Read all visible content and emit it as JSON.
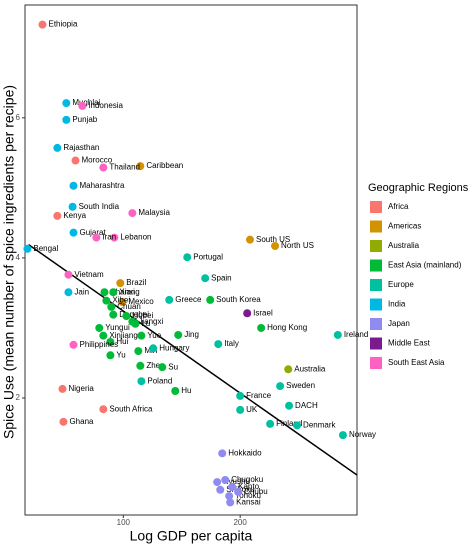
{
  "chart_data": {
    "type": "scatter",
    "x_label": "Log GDP per capita",
    "y_label": "Spice Use (mean number of spice ingredients per recipe)",
    "x_scale": "log",
    "xlim": [
      55.8,
      400
    ],
    "ylim": [
      0.33,
      7.61
    ],
    "xticks": [
      100,
      200
    ],
    "yticks": [
      2,
      4,
      6
    ],
    "legend_title": "Geographic Regions",
    "trend_line": {
      "x": [
        57,
        400
      ],
      "y": [
        4.19,
        0.9
      ],
      "color": "#000000"
    },
    "series": [
      {
        "name": "Africa",
        "color": "#F8766D",
        "labels": [
          "Ethiopia",
          "Kenya",
          "Nigeria",
          "Ghana",
          "Morocco",
          "South Africa"
        ],
        "x": [
          61.9,
          67.6,
          69.7,
          70.1,
          75.3,
          88.8
        ],
        "values": [
          7.33,
          4.6,
          2.13,
          1.66,
          5.39,
          1.84
        ]
      },
      {
        "name": "Americas",
        "color": "#D39200",
        "labels": [
          "Caribbean",
          "South US",
          "North US",
          "Brazil",
          "Mexico"
        ],
        "x": [
          110.6,
          212,
          246,
          98.2,
          99.4
        ],
        "values": [
          5.31,
          4.26,
          4.17,
          3.64,
          3.37
        ]
      },
      {
        "name": "Australia",
        "color": "#93AA00",
        "labels": [
          "Australia"
        ],
        "x": [
          266
        ],
        "values": [
          2.41
        ]
      },
      {
        "name": "East Asia (mainland)",
        "color": "#00BA38",
        "labels": [
          "Shanxi",
          "Xiang",
          "Xibei",
          "Chuan",
          "Dongbei",
          "Hubei",
          "Jiangxi",
          "Lu",
          "Yungui",
          "Xinjiang",
          "Hui",
          "Yue",
          "Jing",
          "Min",
          "Yu",
          "Zhe",
          "Su",
          "Hu",
          "Hong Kong",
          "South Korea"
        ],
        "x": [
          89.4,
          94.2,
          90.4,
          93.1,
          94.2,
          101.8,
          105.5,
          107.4,
          86.7,
          88.8,
          92.6,
          111.3,
          138.5,
          109.3,
          92.6,
          110.6,
          126,
          136.1,
          226.5,
          167.4
        ],
        "values": [
          3.51,
          3.51,
          3.39,
          3.3,
          3.19,
          3.17,
          3.09,
          3.06,
          3.0,
          2.89,
          2.8,
          2.89,
          2.9,
          2.67,
          2.61,
          2.46,
          2.44,
          2.1,
          3.0,
          3.4
        ]
      },
      {
        "name": "Europe",
        "color": "#00C19F",
        "labels": [
          "Portugal",
          "Spain",
          "Greece",
          "Ireland",
          "Italy",
          "Poland",
          "Hungary",
          "France",
          "UK",
          "Sweden",
          "DACH",
          "Finland",
          "Denmark",
          "Norway"
        ],
        "x": [
          146.1,
          162.5,
          131.3,
          357,
          175.6,
          111.3,
          119.4,
          200,
          200,
          253.5,
          267.3,
          238.9,
          280.3,
          368
        ],
        "values": [
          4.01,
          3.71,
          3.4,
          2.9,
          2.77,
          2.24,
          2.71,
          2.03,
          1.83,
          2.17,
          1.89,
          1.63,
          1.61,
          1.47
        ]
      },
      {
        "name": "India",
        "color": "#00B9E3",
        "labels": [
          "Mughlai",
          "Punjab",
          "Rajasthan",
          "Maharashtra",
          "South India",
          "Gujarat",
          "Bengal",
          "Jain"
        ],
        "x": [
          71.3,
          71.3,
          67.6,
          74.4,
          74.0,
          74.4,
          56.6,
          72.2
        ],
        "values": [
          6.21,
          5.97,
          5.57,
          5.03,
          4.73,
          4.36,
          4.13,
          3.51
        ]
      },
      {
        "name": "Japan",
        "color": "#8F8BF0",
        "labels": [
          "Hokkaido",
          "Kyushu",
          "Chugoku",
          "Shikoku",
          "Kanto",
          "Tohoku",
          "Chubu",
          "Kansai"
        ],
        "x": [
          179.8,
          174.5,
          183,
          177.7,
          190.7,
          187.4,
          197.6,
          188.5
        ],
        "values": [
          1.21,
          0.8,
          0.83,
          0.69,
          0.73,
          0.6,
          0.66,
          0.51
        ]
      },
      {
        "name": "Middle East",
        "color": "#7B1A8E",
        "labels": [
          "Israel"
        ],
        "x": [
          208.5
        ],
        "values": [
          3.21
        ]
      },
      {
        "name": "South East Asia",
        "color": "#FF61C3",
        "labels": [
          "Indonesia",
          "Thailand",
          "Malaysia",
          "Lebanon",
          "Iran",
          "Vietnam",
          "Philippines"
        ],
        "x": [
          78.4,
          88.8,
          105.5,
          94.8,
          85.2,
          72.2,
          74.4
        ],
        "values": [
          6.17,
          5.29,
          4.64,
          4.29,
          4.29,
          3.76,
          2.76
        ]
      }
    ]
  }
}
